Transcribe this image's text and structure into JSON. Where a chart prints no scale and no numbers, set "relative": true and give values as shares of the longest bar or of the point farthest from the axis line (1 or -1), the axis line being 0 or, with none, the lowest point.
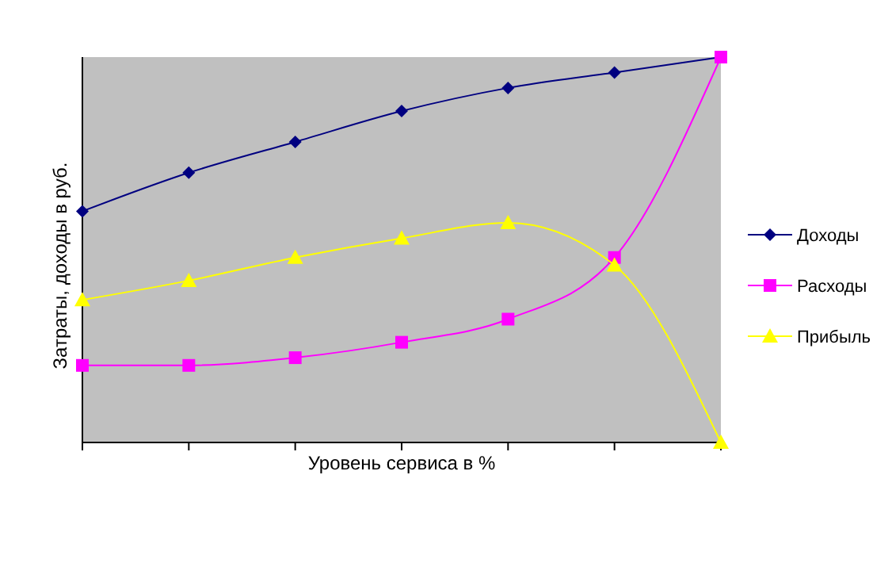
{
  "chart_data": {
    "type": "line",
    "relative": true,
    "xlabel": "Уровень сервиса в %",
    "ylabel": "Затраты, доходы в руб.",
    "categories": [
      null,
      null,
      null,
      null,
      null,
      null,
      null
    ],
    "legend": "right",
    "series": [
      {
        "name": "Доходы",
        "color": "#000080",
        "marker": "diamond",
        "values": [
          0.6,
          0.7,
          0.78,
          0.86,
          0.92,
          0.96,
          1
        ]
      },
      {
        "name": "Расходы",
        "color": "#ff00ff",
        "marker": "square",
        "values": [
          0.2,
          0.2,
          0.22,
          0.26,
          0.32,
          0.48,
          1
        ]
      },
      {
        "name": "Прибыль",
        "color": "#ffff00",
        "marker": "triangle",
        "values": [
          0.37,
          0.42,
          0.48,
          0.53,
          0.57,
          0.46,
          0
        ]
      }
    ]
  }
}
